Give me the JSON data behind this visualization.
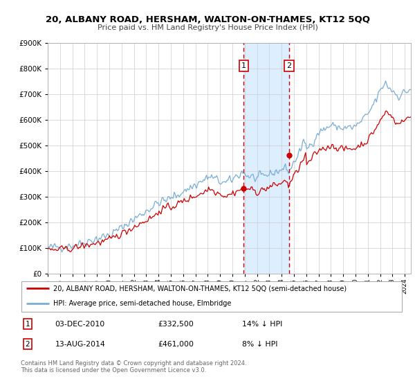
{
  "title": "20, ALBANY ROAD, HERSHAM, WALTON-ON-THAMES, KT12 5QQ",
  "subtitle": "Price paid vs. HM Land Registry's House Price Index (HPI)",
  "legend_line1": "20, ALBANY ROAD, HERSHAM, WALTON-ON-THAMES, KT12 5QQ (semi-detached house)",
  "legend_line2": "HPI: Average price, semi-detached house, Elmbridge",
  "transaction1_label": "1",
  "transaction1_date": "03-DEC-2010",
  "transaction1_price": "£332,500",
  "transaction1_hpi": "14% ↓ HPI",
  "transaction2_label": "2",
  "transaction2_date": "13-AUG-2014",
  "transaction2_price": "£461,000",
  "transaction2_hpi": "8% ↓ HPI",
  "footer1": "Contains HM Land Registry data © Crown copyright and database right 2024.",
  "footer2": "This data is licensed under the Open Government Licence v3.0.",
  "red_color": "#cc0000",
  "blue_color": "#7aadd4",
  "shade_color": "#ddeeff",
  "grid_color": "#cccccc",
  "marker1_date": 2010.917,
  "marker1_value": 332500,
  "marker2_date": 2014.617,
  "marker2_value": 461000,
  "vline1_date": 2010.917,
  "vline2_date": 2014.617,
  "ylim_max": 900000,
  "ylim_min": 0,
  "xlim_min": 1995.0,
  "xlim_max": 2024.5
}
